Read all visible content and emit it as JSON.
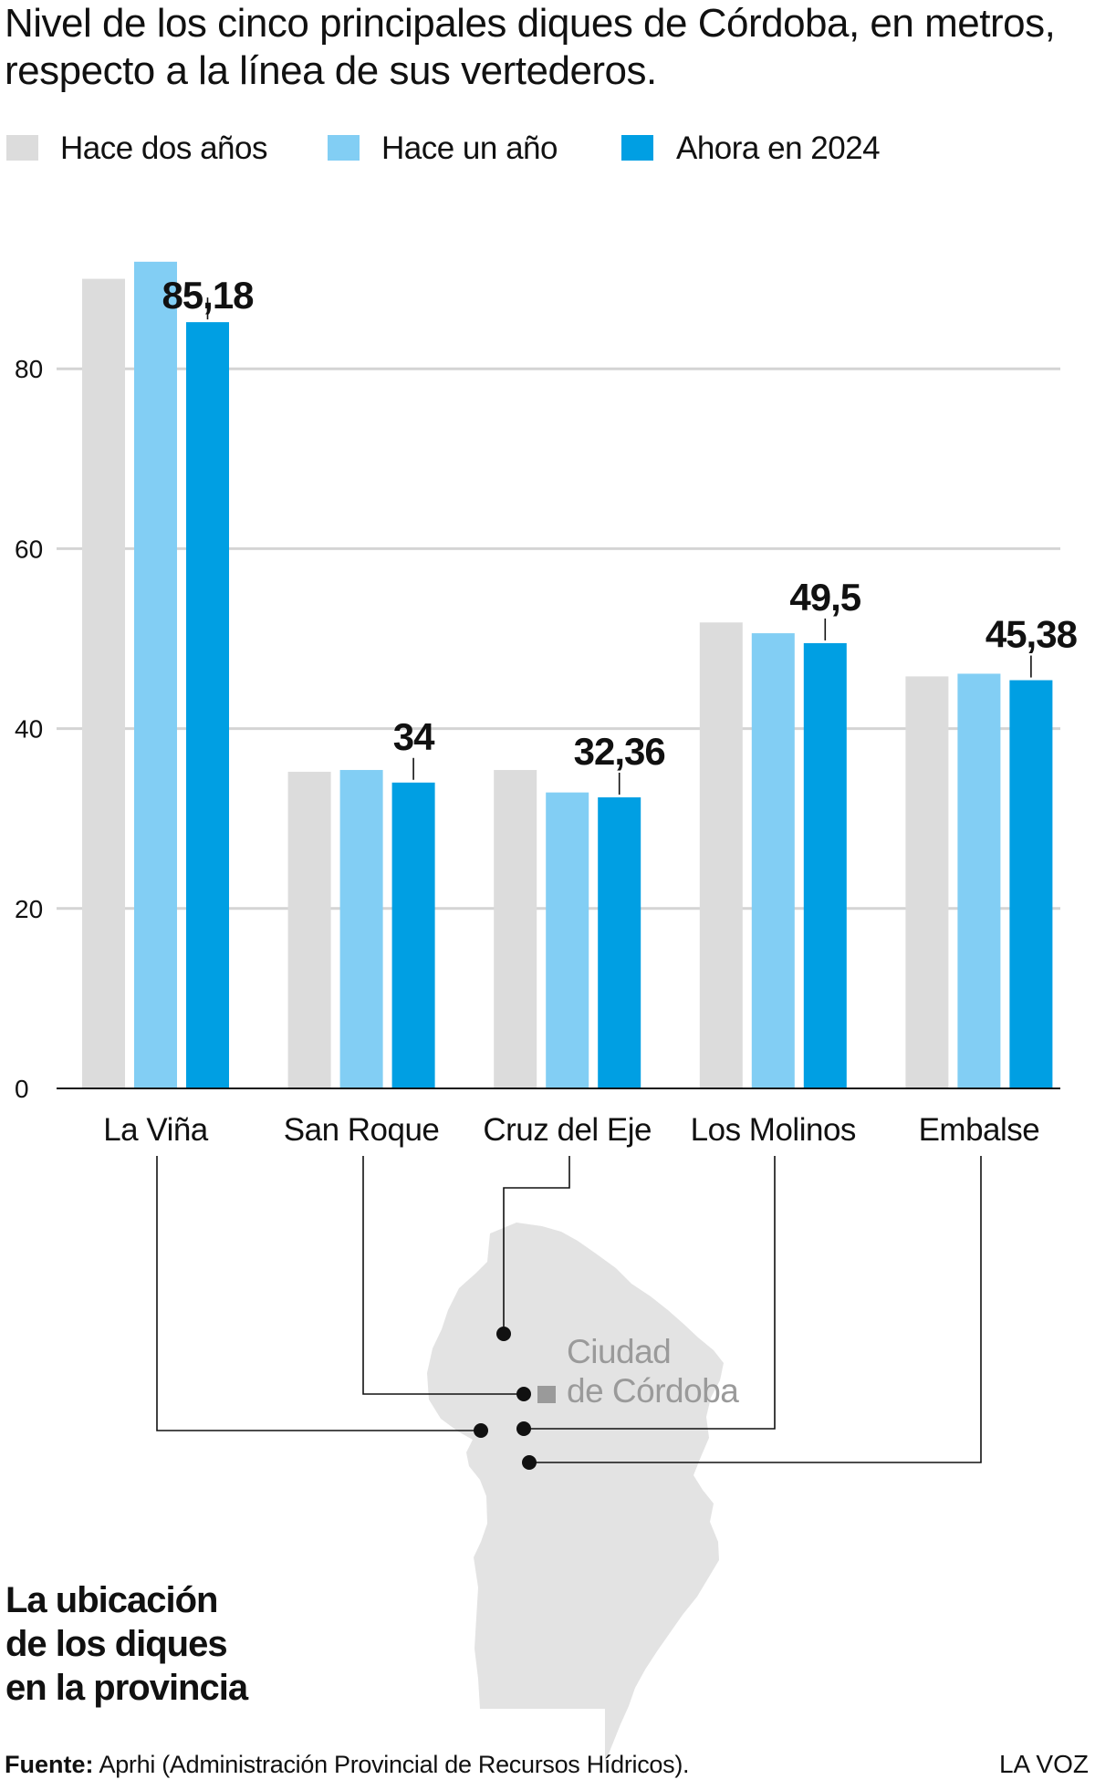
{
  "title_lines": [
    "Nivel de los cinco principales diques de Córdoba, en metros,",
    "respecto a la línea de sus vertederos."
  ],
  "colors": {
    "hace_dos_anos": "#dcdcdc",
    "hace_un_ano": "#82cef4",
    "ahora_2024": "#009fe3",
    "grid": "#d4d4d4",
    "map_fill": "#e3e3e3"
  },
  "chart_data": {
    "type": "bar",
    "categories": [
      "La Viña",
      "San Roque",
      "Cruz del Eje",
      "Los Molinos",
      "Embalse"
    ],
    "series": [
      {
        "name": "Hace dos años",
        "values": [
          90,
          35.2,
          35.4,
          51.8,
          45.8
        ]
      },
      {
        "name": "Hace un año",
        "values": [
          91.9,
          35.4,
          32.9,
          50.6,
          46.1
        ]
      },
      {
        "name": "Ahora en 2024",
        "values": [
          85.18,
          34,
          32.36,
          49.5,
          45.38
        ]
      }
    ],
    "data_labels": [
      "85,18",
      "34",
      "32,36",
      "49,5",
      "45,38"
    ],
    "yticks": [
      0,
      20,
      40,
      60,
      80
    ],
    "ylim": [
      0,
      100
    ],
    "grid": true,
    "legend_position": "top-left"
  },
  "map": {
    "city_label_lines": [
      "Ciudad",
      "de Córdoba"
    ]
  },
  "section_title_lines": [
    "La ubicación",
    "de los diques",
    "en la provincia"
  ],
  "footer": {
    "source_label": "Fuente:",
    "source_text": "Aprhi (Administración Provincial de Recursos Hídricos).",
    "brand": "LA VOZ"
  }
}
